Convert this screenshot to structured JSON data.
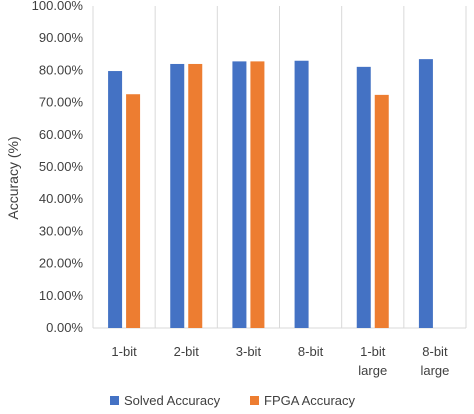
{
  "chart_data": {
    "type": "bar",
    "categories": [
      [
        "1-bit"
      ],
      [
        "2-bit"
      ],
      [
        "3-bit"
      ],
      [
        "8-bit"
      ],
      [
        "1-bit",
        "large"
      ],
      [
        "8-bit",
        "large"
      ]
    ],
    "series": [
      {
        "name": "Solved Accuracy",
        "color": "#4472C4",
        "values": [
          0.798,
          0.82,
          0.828,
          0.83,
          0.811,
          0.835
        ]
      },
      {
        "name": "FPGA Accuracy",
        "color": "#ED7D31",
        "values": [
          0.726,
          0.82,
          0.828,
          null,
          0.724,
          null
        ]
      }
    ],
    "title": "",
    "xlabel": "",
    "ylabel": "Accuracy (%)",
    "ylim": [
      0,
      1
    ],
    "yticks": [
      "0.00%",
      "10.00%",
      "20.00%",
      "30.00%",
      "40.00%",
      "50.00%",
      "60.00%",
      "70.00%",
      "80.00%",
      "90.00%",
      "100.00%"
    ],
    "grid": "vertical-category-lines",
    "legend": "bottom"
  }
}
